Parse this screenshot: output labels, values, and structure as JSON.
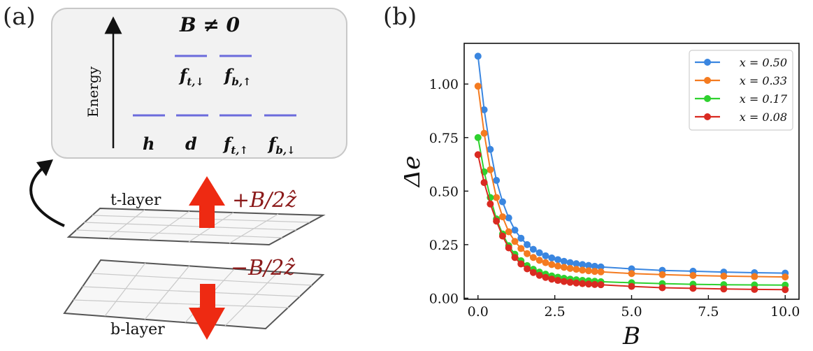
{
  "panel_a": {
    "label": "(a)",
    "energy_box": {
      "title": "B ≠ 0",
      "axis_label": "Energy",
      "upper_levels": [
        {
          "main": "f",
          "sub": "t,↓"
        },
        {
          "main": "f",
          "sub": "b,↑"
        }
      ],
      "lower_levels": [
        {
          "main": "h",
          "sub": ""
        },
        {
          "main": "d",
          "sub": ""
        },
        {
          "main": "f",
          "sub": "t,↑"
        },
        {
          "main": "f",
          "sub": "b,↓"
        }
      ]
    },
    "top_layer_label": "t-layer",
    "bottom_layer_label": "b-layer",
    "top_field_label": "+B/2ẑ",
    "bottom_field_label": "−B/2ẑ",
    "colors": {
      "level": "#6b6bdc",
      "field_arrow": "#ee2a12",
      "field_text": "#8b1a1a",
      "box_fill": "#f2f2f2",
      "box_stroke": "#c8c8c8"
    }
  },
  "panel_b": {
    "label": "(b)",
    "chart_data": {
      "type": "line",
      "xlabel": "B",
      "ylabel": "Δe",
      "xlim": [
        -0.45,
        10.45
      ],
      "ylim": [
        -0.005,
        1.19
      ],
      "xticks": [
        "0.0",
        "2.5",
        "5.0",
        "7.5",
        "10.0"
      ],
      "yticks": [
        "0.00",
        "0.25",
        "0.50",
        "0.75",
        "1.00"
      ],
      "legend_position": "top-right",
      "x": [
        0.0,
        0.2,
        0.4,
        0.6,
        0.8,
        1.0,
        1.2,
        1.4,
        1.6,
        1.8,
        2.0,
        2.2,
        2.4,
        2.6,
        2.8,
        3.0,
        3.2,
        3.4,
        3.6,
        3.8,
        4.0,
        5.0,
        6.0,
        7.0,
        8.0,
        9.0,
        10.0
      ],
      "series": [
        {
          "name": "x = 0.50",
          "color": "#3a86e0",
          "values": [
            1.13,
            0.88,
            0.695,
            0.55,
            0.45,
            0.375,
            0.318,
            0.28,
            0.25,
            0.228,
            0.212,
            0.198,
            0.188,
            0.18,
            0.172,
            0.166,
            0.161,
            0.157,
            0.153,
            0.149,
            0.146,
            0.137,
            0.13,
            0.126,
            0.122,
            0.119,
            0.117
          ]
        },
        {
          "name": "x = 0.33",
          "color": "#f47b20",
          "values": [
            0.99,
            0.77,
            0.6,
            0.47,
            0.38,
            0.31,
            0.265,
            0.232,
            0.208,
            0.19,
            0.177,
            0.166,
            0.157,
            0.15,
            0.144,
            0.139,
            0.135,
            0.131,
            0.128,
            0.125,
            0.123,
            0.115,
            0.11,
            0.106,
            0.103,
            0.101,
            0.099
          ]
        },
        {
          "name": "x = 0.17",
          "color": "#2fd12f",
          "values": [
            0.75,
            0.59,
            0.47,
            0.37,
            0.3,
            0.245,
            0.205,
            0.175,
            0.152,
            0.135,
            0.122,
            0.112,
            0.104,
            0.098,
            0.093,
            0.089,
            0.086,
            0.083,
            0.081,
            0.079,
            0.077,
            0.072,
            0.068,
            0.065,
            0.063,
            0.062,
            0.061
          ]
        },
        {
          "name": "x = 0.08",
          "color": "#d92a21",
          "values": [
            0.67,
            0.54,
            0.44,
            0.36,
            0.29,
            0.235,
            0.19,
            0.16,
            0.137,
            0.12,
            0.107,
            0.097,
            0.089,
            0.083,
            0.078,
            0.074,
            0.071,
            0.068,
            0.066,
            0.064,
            0.063,
            0.055,
            0.049,
            0.046,
            0.043,
            0.041,
            0.04
          ]
        }
      ]
    }
  }
}
